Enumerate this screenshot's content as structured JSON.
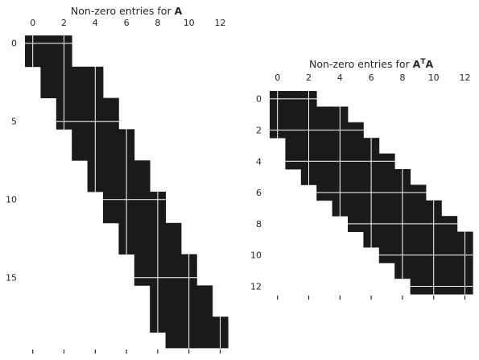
{
  "chart_data": [
    {
      "type": "heatmap",
      "title_prefix": "Non-zero entries for ",
      "title_matrix": "A",
      "title_sup": "",
      "title_suffix": "",
      "n_rows": 20,
      "n_cols": 13,
      "xticks": [
        0,
        2,
        4,
        6,
        8,
        10,
        12
      ],
      "yticks": [
        0,
        5,
        10,
        15
      ],
      "cell_color": "#1a1a1a",
      "grid_color": "#ffffff",
      "rows": [
        [
          0,
          2
        ],
        [
          0,
          2
        ],
        [
          1,
          4
        ],
        [
          1,
          4
        ],
        [
          2,
          5
        ],
        [
          2,
          5
        ],
        [
          3,
          6
        ],
        [
          3,
          6
        ],
        [
          4,
          7
        ],
        [
          4,
          7
        ],
        [
          5,
          8
        ],
        [
          5,
          8
        ],
        [
          6,
          9
        ],
        [
          6,
          9
        ],
        [
          7,
          10
        ],
        [
          7,
          10
        ],
        [
          8,
          11
        ],
        [
          8,
          11
        ],
        [
          8,
          12
        ],
        [
          9,
          12
        ]
      ]
    },
    {
      "type": "heatmap",
      "title_prefix": "Non-zero entries for ",
      "title_matrix": "A",
      "title_sup": "T",
      "title_suffix": "A",
      "n_rows": 13,
      "n_cols": 13,
      "xticks": [
        0,
        2,
        4,
        6,
        8,
        10,
        12
      ],
      "yticks": [
        0,
        2,
        4,
        6,
        8,
        10,
        12
      ],
      "cell_color": "#1a1a1a",
      "grid_color": "#ffffff",
      "rows": [
        [
          0,
          2
        ],
        [
          0,
          4
        ],
        [
          0,
          5
        ],
        [
          1,
          6
        ],
        [
          1,
          7
        ],
        [
          2,
          8
        ],
        [
          3,
          9
        ],
        [
          4,
          10
        ],
        [
          5,
          11
        ],
        [
          6,
          12
        ],
        [
          7,
          12
        ],
        [
          8,
          12
        ],
        [
          9,
          12
        ]
      ]
    }
  ]
}
